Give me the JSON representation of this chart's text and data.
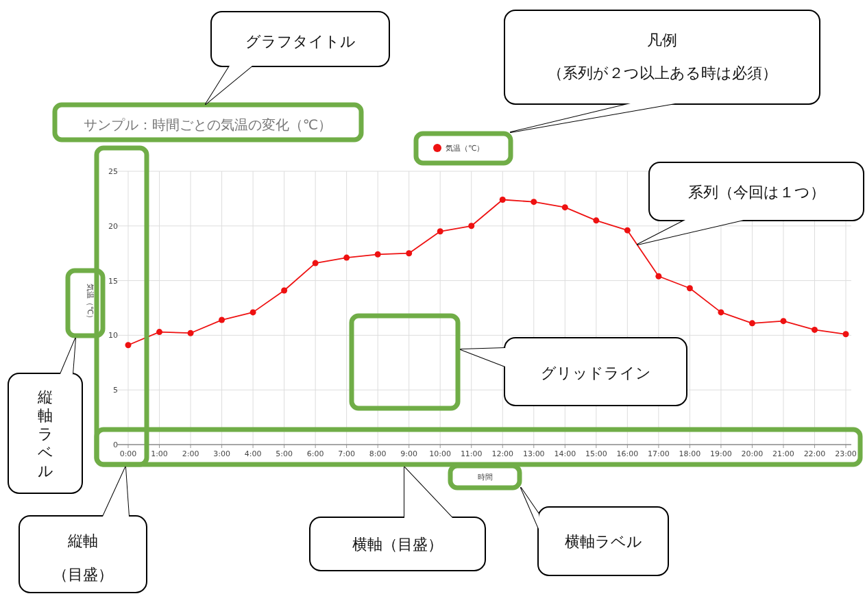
{
  "chart_data": {
    "type": "line",
    "title": "サンプル：時間ごとの気温の変化（℃）",
    "xlabel": "時間",
    "ylabel": "気温（℃）",
    "categories": [
      "0:00",
      "1:00",
      "2:00",
      "3:00",
      "4:00",
      "5:00",
      "6:00",
      "7:00",
      "8:00",
      "9:00",
      "10:00",
      "11:00",
      "12:00",
      "13:00",
      "14:00",
      "15:00",
      "16:00",
      "17:00",
      "18:00",
      "19:00",
      "20:00",
      "21:00",
      "22:00",
      "23:00"
    ],
    "series": [
      {
        "name": "気温（℃）",
        "color": "#ee1111",
        "values": [
          9.1,
          10.3,
          10.2,
          11.4,
          12.1,
          14.1,
          16.6,
          17.1,
          17.4,
          17.5,
          19.5,
          20.0,
          22.4,
          22.2,
          21.7,
          20.5,
          19.6,
          15.4,
          14.3,
          12.1,
          11.1,
          11.3,
          10.5,
          10.1
        ]
      }
    ],
    "ylim": [
      0,
      25
    ],
    "yticks": [
      0,
      5,
      10,
      15,
      20,
      25
    ],
    "grid": true,
    "legend": "top",
    "marker": "circle",
    "line_style": "solid",
    "annotations": [
      "グラフタイトル",
      "凡例",
      "（系列が２つ以上ある時は必須）",
      "系列（今回は１つ）",
      "グリッドライン",
      "縦軸ラベル",
      "縦軸",
      "（目盛）",
      "横軸（目盛）",
      "横軸ラベル"
    ]
  }
}
